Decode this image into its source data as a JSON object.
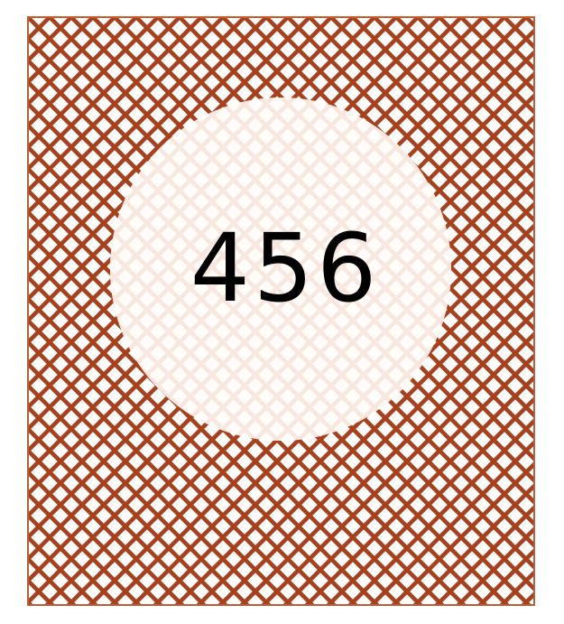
{
  "badge": {
    "number": "456"
  },
  "colors": {
    "lattice": "#a8401c",
    "border": "#b9603a",
    "background": "#ffffff",
    "circle_fill": "#ffffff",
    "circle_lattice": "#f3dcd0",
    "text": "#000000"
  }
}
